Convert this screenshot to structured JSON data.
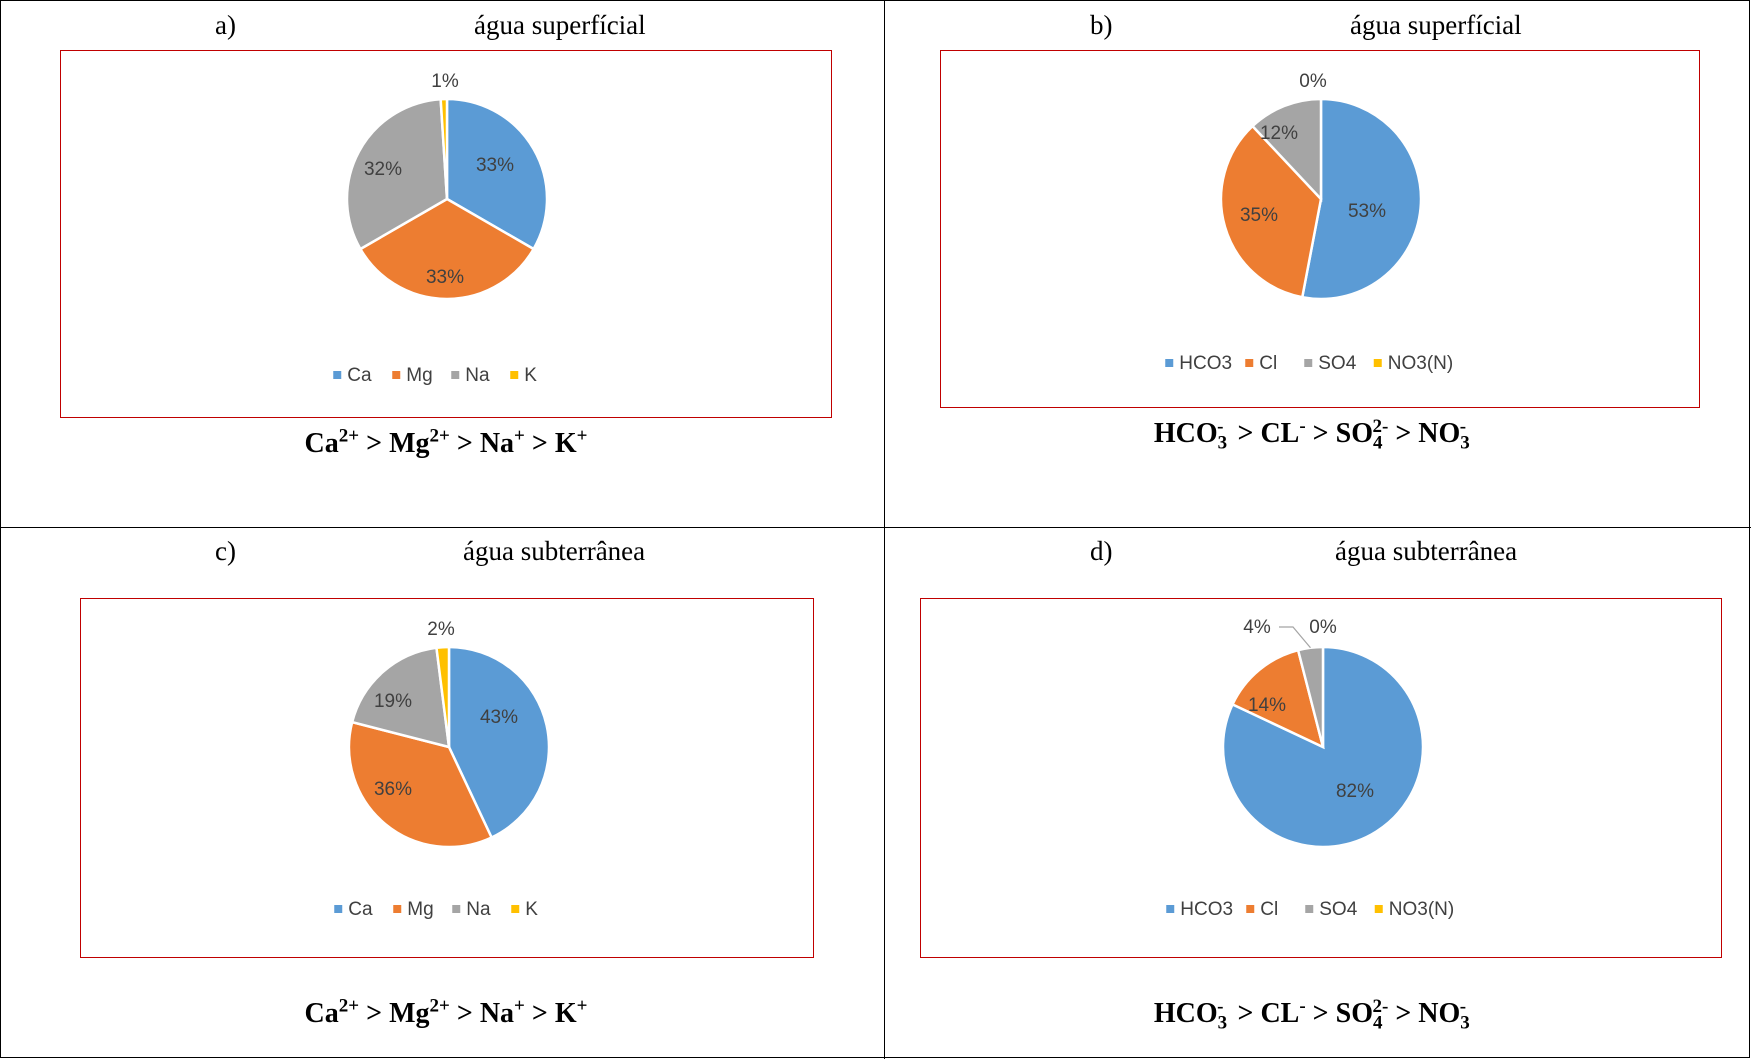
{
  "chart_data": [
    {
      "type": "pie",
      "panel_label": "a)",
      "title": "água superfícial",
      "categories": [
        "Ca",
        "Mg",
        "Na",
        "K"
      ],
      "values": [
        33,
        33,
        32,
        1
      ],
      "data_labels": [
        "33%",
        "33%",
        "32%",
        "1%"
      ],
      "colors": [
        "#5b9bd5",
        "#ed7d31",
        "#a5a5a5",
        "#ffc000"
      ],
      "legend": "bottom",
      "formula": [
        {
          "base": "Ca",
          "sup": "2+"
        },
        {
          "op": " > "
        },
        {
          "base": "Mg",
          "sup": "2+"
        },
        {
          "op": " > "
        },
        {
          "base": "Na",
          "sup": "+"
        },
        {
          "op": " > "
        },
        {
          "base": "K",
          "sup": "+"
        }
      ]
    },
    {
      "type": "pie",
      "panel_label": "b)",
      "title": "água superfícial",
      "categories": [
        "HCO3",
        "Cl",
        "SO4",
        "NO3(N)"
      ],
      "values": [
        53,
        35,
        12,
        0
      ],
      "data_labels": [
        "53%",
        "35%",
        "12%",
        "0%"
      ],
      "colors": [
        "#5b9bd5",
        "#ed7d31",
        "#a5a5a5",
        "#ffc000"
      ],
      "legend": "bottom",
      "formula": [
        {
          "base": "HCO",
          "sub": "3",
          "sup": "-"
        },
        {
          "op": "  > "
        },
        {
          "base": "CL",
          "sup": "-"
        },
        {
          "op": " > "
        },
        {
          "base": "SO",
          "sub": "4",
          "sup": "2-"
        },
        {
          "op": " > "
        },
        {
          "base": "NO",
          "sub": "3",
          "sup": "-"
        }
      ]
    },
    {
      "type": "pie",
      "panel_label": "c)",
      "title": "água subterrânea",
      "categories": [
        "Ca",
        "Mg",
        "Na",
        "K"
      ],
      "values": [
        43,
        36,
        19,
        2
      ],
      "data_labels": [
        "43%",
        "36%",
        "19%",
        "2%"
      ],
      "colors": [
        "#5b9bd5",
        "#ed7d31",
        "#a5a5a5",
        "#ffc000"
      ],
      "legend": "bottom",
      "formula": [
        {
          "base": "Ca",
          "sup": "2+"
        },
        {
          "op": " > "
        },
        {
          "base": "Mg",
          "sup": "2+"
        },
        {
          "op": " > "
        },
        {
          "base": "Na",
          "sup": "+"
        },
        {
          "op": " > "
        },
        {
          "base": "K",
          "sup": "+"
        }
      ]
    },
    {
      "type": "pie",
      "panel_label": "d)",
      "title": "água subterrânea",
      "categories": [
        "HCO3",
        "Cl",
        "SO4",
        "NO3(N)"
      ],
      "values": [
        82,
        14,
        4,
        0
      ],
      "data_labels": [
        "82%",
        "14%",
        "4%",
        "0%"
      ],
      "colors": [
        "#5b9bd5",
        "#ed7d31",
        "#a5a5a5",
        "#ffc000"
      ],
      "legend": "bottom",
      "formula": [
        {
          "base": "HCO",
          "sub": "3",
          "sup": "-"
        },
        {
          "op": "  > "
        },
        {
          "base": "CL",
          "sup": "-"
        },
        {
          "op": " > "
        },
        {
          "base": "SO",
          "sub": "4",
          "sup": "2-"
        },
        {
          "op": " > "
        },
        {
          "base": "NO",
          "sub": "3",
          "sup": "-"
        }
      ]
    }
  ]
}
